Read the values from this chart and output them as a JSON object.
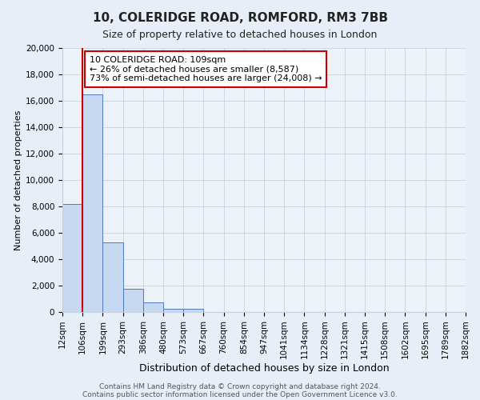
{
  "title": "10, COLERIDGE ROAD, ROMFORD, RM3 7BB",
  "subtitle": "Size of property relative to detached houses in London",
  "xlabel": "Distribution of detached houses by size in London",
  "ylabel": "Number of detached properties",
  "bin_labels": [
    "12sqm",
    "106sqm",
    "199sqm",
    "293sqm",
    "386sqm",
    "480sqm",
    "573sqm",
    "667sqm",
    "760sqm",
    "854sqm",
    "947sqm",
    "1041sqm",
    "1134sqm",
    "1228sqm",
    "1321sqm",
    "1415sqm",
    "1508sqm",
    "1602sqm",
    "1695sqm",
    "1789sqm",
    "1882sqm"
  ],
  "bar_heights": [
    8200,
    16500,
    5300,
    1750,
    750,
    270,
    270,
    0,
    0,
    0,
    0,
    0,
    0,
    0,
    0,
    0,
    0,
    0,
    0,
    0
  ],
  "bar_color": "#c6d9f1",
  "bar_edge_color": "#4e7abf",
  "ylim": [
    0,
    20000
  ],
  "yticks": [
    0,
    2000,
    4000,
    6000,
    8000,
    10000,
    12000,
    14000,
    16000,
    18000,
    20000
  ],
  "vline_color": "#cc0000",
  "annotation_line1": "10 COLERIDGE ROAD: 109sqm",
  "annotation_line2": "← 26% of detached houses are smaller (8,587)",
  "annotation_line3": "73% of semi-detached houses are larger (24,008) →",
  "annotation_box_color": "#ffffff",
  "annotation_box_edge": "#cc0000",
  "footer_line1": "Contains HM Land Registry data © Crown copyright and database right 2024.",
  "footer_line2": "Contains public sector information licensed under the Open Government Licence v3.0.",
  "bg_color": "#e8eef7",
  "plot_bg_color": "#edf1f8",
  "grid_color": "#c8d0df",
  "title_fontsize": 11,
  "subtitle_fontsize": 9,
  "ylabel_fontsize": 8,
  "xlabel_fontsize": 9,
  "tick_fontsize": 7.5,
  "annotation_fontsize": 8,
  "footer_fontsize": 6.5
}
